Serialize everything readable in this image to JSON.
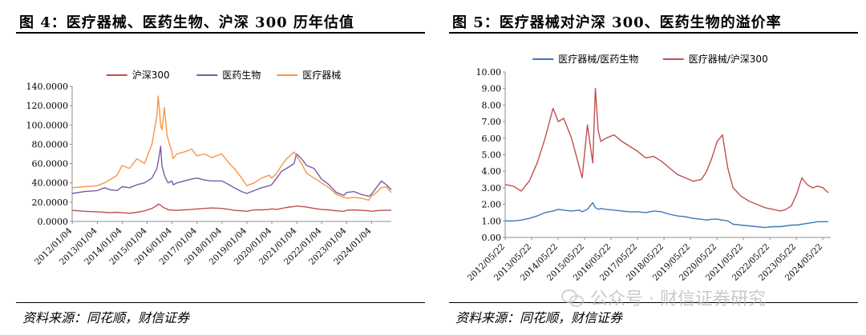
{
  "figures": [
    {
      "title": "图 4：医疗器械、医药生物、沪深 300 历年估值",
      "source": "资料来源：同花顺，财信证券"
    },
    {
      "title": "图 5：医疗器械对沪深 300、医药生物的溢价率",
      "source": "资料来源：同花顺，财信证券"
    }
  ],
  "watermark": "公众号 · 财信证券研究",
  "chart_data": [
    {
      "type": "line",
      "title": "图 4：医疗器械、医药生物、沪深 300 历年估值",
      "xlabel": "",
      "ylabel": "",
      "ylim": [
        0,
        140
      ],
      "y_tick_labels": [
        "0.0000",
        "20.0000",
        "40.0000",
        "60.0000",
        "80.0000",
        "100.0000",
        "120.0000",
        "140.0000"
      ],
      "x_tick_labels": [
        "2012/01/04",
        "2013/01/04",
        "2014/01/04",
        "2015/01/04",
        "2016/01/04",
        "2017/01/04",
        "2018/01/04",
        "2019/01/04",
        "2020/01/04",
        "2021/01/04",
        "2022/01/04",
        "2023/01/04",
        "2024/01/04"
      ],
      "x": [
        2012.0,
        2012.5,
        2013.0,
        2013.3,
        2013.5,
        2013.8,
        2014.0,
        2014.3,
        2014.6,
        2014.9,
        2015.2,
        2015.4,
        2015.45,
        2015.55,
        2015.6,
        2015.7,
        2015.8,
        2015.85,
        2016.0,
        2016.05,
        2016.2,
        2016.5,
        2016.8,
        2017.0,
        2017.3,
        2017.6,
        2018.0,
        2018.3,
        2018.5,
        2018.8,
        2019.0,
        2019.3,
        2019.6,
        2019.9,
        2020.0,
        2020.2,
        2020.4,
        2020.6,
        2020.9,
        2021.0,
        2021.2,
        2021.4,
        2021.7,
        2022.0,
        2022.3,
        2022.6,
        2022.9,
        2023.0,
        2023.3,
        2023.6,
        2023.9,
        2024.0,
        2024.2,
        2024.4,
        2024.6,
        2024.8
      ],
      "legend_position": "top",
      "grid": false,
      "series": [
        {
          "name": "沪深300",
          "color": "#c0504d",
          "values": [
            11.5,
            10.5,
            10.0,
            9.5,
            9.0,
            9.5,
            9.0,
            8.5,
            9.5,
            11.0,
            13.5,
            16.5,
            18.0,
            17.0,
            15.5,
            14.0,
            13.0,
            12.0,
            12.0,
            11.5,
            11.5,
            12.0,
            12.5,
            13.0,
            13.5,
            14.0,
            13.5,
            12.5,
            11.5,
            11.0,
            10.5,
            12.0,
            12.0,
            12.5,
            13.0,
            12.5,
            13.5,
            14.5,
            15.5,
            16.0,
            15.5,
            15.0,
            13.5,
            12.5,
            12.0,
            11.0,
            10.5,
            11.5,
            12.0,
            11.5,
            11.0,
            10.5,
            11.0,
            11.5,
            11.5,
            11.8
          ]
        },
        {
          "name": "医药生物",
          "color": "#7a5aa6",
          "values": [
            29,
            31,
            32,
            35,
            33,
            32,
            36,
            35,
            38,
            40,
            45,
            55,
            62,
            78,
            58,
            48,
            42,
            40,
            42,
            38,
            40,
            42,
            44,
            45,
            43,
            42,
            42,
            38,
            35,
            31,
            29,
            32,
            35,
            37,
            38,
            45,
            52,
            55,
            60,
            70,
            65,
            58,
            55,
            44,
            38,
            30,
            27,
            30,
            31,
            28,
            26,
            28,
            35,
            42,
            38,
            33
          ]
        },
        {
          "name": "医疗器械",
          "color": "#f79646",
          "values": [
            35,
            36,
            37,
            40,
            43,
            48,
            58,
            55,
            65,
            60,
            80,
            110,
            130,
            100,
            95,
            118,
            90,
            85,
            72,
            65,
            70,
            72,
            75,
            68,
            70,
            66,
            70,
            60,
            55,
            45,
            37,
            40,
            45,
            48,
            45,
            50,
            58,
            65,
            72,
            68,
            60,
            50,
            45,
            40,
            35,
            28,
            25,
            24,
            25,
            24,
            22,
            26,
            30,
            35,
            36,
            30
          ]
        }
      ]
    },
    {
      "type": "line",
      "title": "图 5：医疗器械对沪深 300、医药生物的溢价率",
      "xlabel": "",
      "ylabel": "",
      "ylim": [
        0,
        10
      ],
      "y_tick_labels": [
        "0.00",
        "1.00",
        "2.00",
        "3.00",
        "4.00",
        "5.00",
        "6.00",
        "7.00",
        "8.00",
        "9.00",
        "10.00"
      ],
      "x_tick_labels": [
        "2012/05/22",
        "2013/05/22",
        "2014/05/22",
        "2015/05/22",
        "2016/05/22",
        "2017/05/22",
        "2018/05/22",
        "2019/05/22",
        "2020/05/22",
        "2021/05/22",
        "2022/05/22",
        "2023/05/22",
        "2024/05/22"
      ],
      "x": [
        2012.39,
        2012.7,
        2013.0,
        2013.3,
        2013.6,
        2013.9,
        2014.2,
        2014.4,
        2014.6,
        2014.9,
        2015.2,
        2015.3,
        2015.5,
        2015.7,
        2015.8,
        2015.9,
        2016.0,
        2016.2,
        2016.5,
        2016.8,
        2017.1,
        2017.4,
        2017.7,
        2018.0,
        2018.3,
        2018.6,
        2018.9,
        2019.2,
        2019.5,
        2019.8,
        2020.0,
        2020.2,
        2020.4,
        2020.6,
        2020.8,
        2021.0,
        2021.3,
        2021.6,
        2021.9,
        2022.2,
        2022.5,
        2022.8,
        2023.0,
        2023.2,
        2023.4,
        2023.6,
        2023.8,
        2024.0,
        2024.2,
        2024.4,
        2024.6
      ],
      "legend_position": "top",
      "grid": false,
      "series": [
        {
          "name": "医疗器械/医药生物",
          "color": "#3a78b8",
          "values": [
            1.0,
            1.0,
            1.05,
            1.15,
            1.3,
            1.5,
            1.6,
            1.7,
            1.65,
            1.6,
            1.65,
            1.55,
            1.7,
            2.1,
            1.8,
            1.7,
            1.75,
            1.7,
            1.65,
            1.6,
            1.55,
            1.55,
            1.5,
            1.6,
            1.55,
            1.4,
            1.3,
            1.25,
            1.15,
            1.1,
            1.05,
            1.1,
            1.1,
            1.05,
            1.0,
            0.8,
            0.75,
            0.7,
            0.65,
            0.6,
            0.65,
            0.65,
            0.7,
            0.75,
            0.75,
            0.8,
            0.85,
            0.9,
            0.95,
            0.95,
            0.95
          ]
        },
        {
          "name": "医疗器械/沪深300",
          "color": "#c0504d",
          "values": [
            3.2,
            3.1,
            2.8,
            3.4,
            4.5,
            6.0,
            7.8,
            7.0,
            7.2,
            6.0,
            4.2,
            3.6,
            6.8,
            4.5,
            9.0,
            6.5,
            5.8,
            6.0,
            6.2,
            5.8,
            5.5,
            5.2,
            4.8,
            4.9,
            4.6,
            4.2,
            3.8,
            3.6,
            3.4,
            3.5,
            4.0,
            4.8,
            5.8,
            6.2,
            4.2,
            3.0,
            2.5,
            2.2,
            2.0,
            1.8,
            1.7,
            1.6,
            1.7,
            1.9,
            2.6,
            3.6,
            3.2,
            3.0,
            3.1,
            3.0,
            2.7
          ]
        }
      ]
    }
  ]
}
